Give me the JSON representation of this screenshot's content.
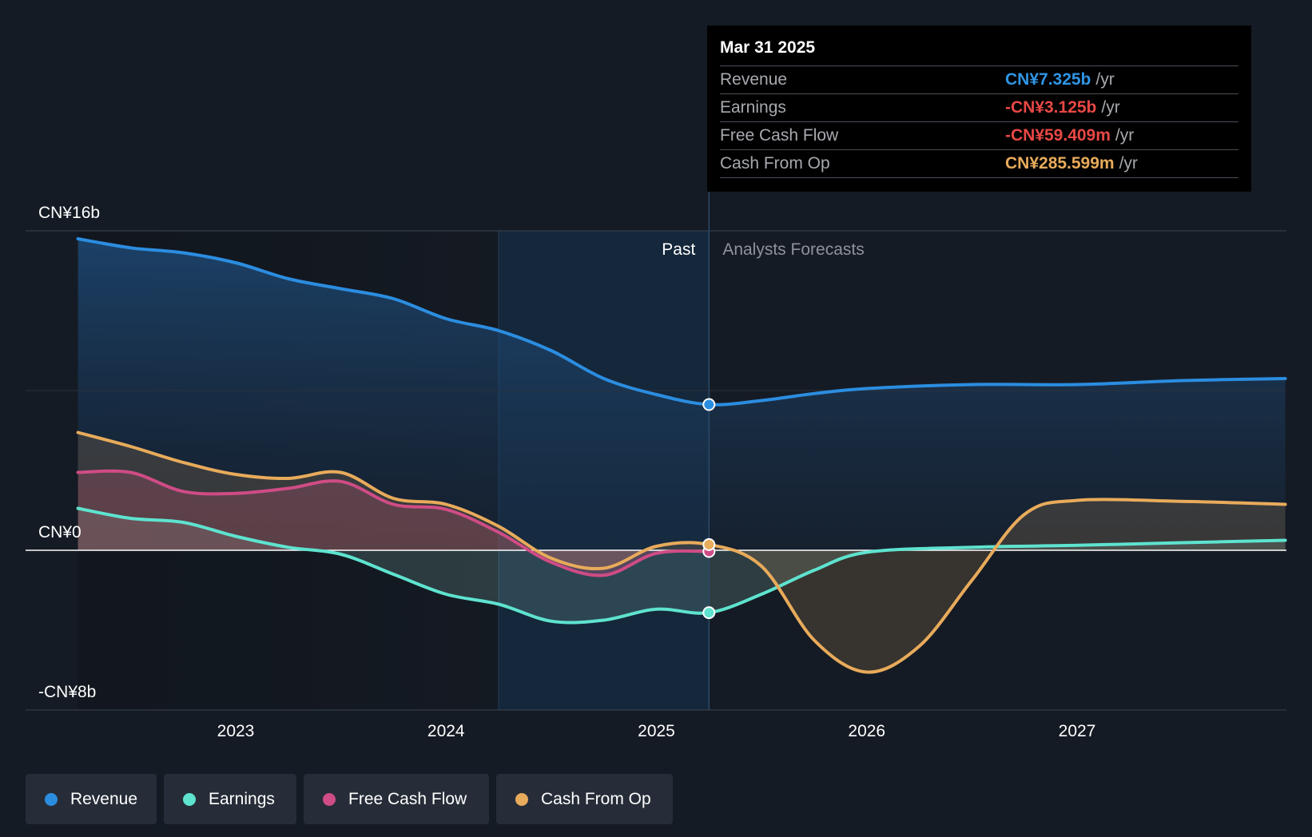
{
  "chart_data": {
    "type": "area",
    "y_labels": {
      "top": "CN¥16b",
      "zero": "CN¥0",
      "bottom": "-CN¥8b"
    },
    "ylim": [
      -8,
      16
    ],
    "xlim": [
      2022.25,
      2027.99
    ],
    "x_ticks": [
      {
        "value": 2023,
        "label": "2023"
      },
      {
        "value": 2024,
        "label": "2024"
      },
      {
        "value": 2025,
        "label": "2025"
      },
      {
        "value": 2026,
        "label": "2026"
      },
      {
        "value": 2027,
        "label": "2027"
      }
    ],
    "forecast_start": 2025.25,
    "highlight_start": 2024.25,
    "section_labels": {
      "past": "Past",
      "forecast": "Analysts Forecasts"
    },
    "series": [
      {
        "name": "Revenue",
        "color": "#2b8de0",
        "x": [
          2022.25,
          2022.5,
          2022.75,
          2023.0,
          2023.25,
          2023.5,
          2023.75,
          2024.0,
          2024.25,
          2024.5,
          2024.75,
          2025.0,
          2025.25,
          2025.5,
          2025.75,
          2026.0,
          2026.5,
          2027.0,
          2027.5,
          2027.99
        ],
        "y": [
          15.6,
          15.15,
          14.9,
          14.4,
          13.6,
          13.1,
          12.6,
          11.6,
          11.0,
          10.0,
          8.6,
          7.8,
          7.3,
          7.5,
          7.85,
          8.1,
          8.3,
          8.3,
          8.5,
          8.6
        ]
      },
      {
        "name": "Earnings",
        "color": "#5ee3cf",
        "x": [
          2022.25,
          2022.5,
          2022.75,
          2023.0,
          2023.25,
          2023.5,
          2023.75,
          2024.0,
          2024.25,
          2024.5,
          2024.75,
          2025.0,
          2025.25,
          2025.5,
          2025.75,
          2026.0,
          2026.5,
          2027.0,
          2027.5,
          2027.99
        ],
        "y": [
          2.1,
          1.6,
          1.4,
          0.7,
          0.15,
          -0.2,
          -1.2,
          -2.2,
          -2.7,
          -3.55,
          -3.5,
          -2.95,
          -3.125,
          -2.2,
          -1.0,
          -0.1,
          0.15,
          0.25,
          0.38,
          0.5
        ]
      },
      {
        "name": "Free Cash Flow",
        "color": "#cf4c85",
        "x": [
          2022.25,
          2022.5,
          2022.75,
          2023.0,
          2023.25,
          2023.5,
          2023.75,
          2024.0,
          2024.25,
          2024.5,
          2024.75,
          2025.0,
          2025.25
        ],
        "y": [
          3.9,
          3.9,
          2.95,
          2.85,
          3.1,
          3.45,
          2.3,
          2.05,
          0.9,
          -0.6,
          -1.25,
          -0.15,
          -0.059
        ]
      },
      {
        "name": "Cash From Op",
        "color": "#e8ab5b",
        "x": [
          2022.25,
          2022.5,
          2022.75,
          2023.0,
          2023.25,
          2023.5,
          2023.75,
          2024.0,
          2024.25,
          2024.5,
          2024.75,
          2025.0,
          2025.25,
          2025.5,
          2025.75,
          2026.0,
          2026.25,
          2026.5,
          2026.75,
          2027.0,
          2027.5,
          2027.99
        ],
        "y": [
          5.9,
          5.2,
          4.4,
          3.8,
          3.6,
          3.9,
          2.6,
          2.3,
          1.2,
          -0.4,
          -0.9,
          0.2,
          0.286,
          -0.8,
          -4.5,
          -6.1,
          -4.8,
          -1.5,
          1.8,
          2.5,
          2.45,
          2.3
        ]
      }
    ]
  },
  "tooltip": {
    "date": "Mar 31 2025",
    "rows": [
      {
        "label": "Revenue",
        "value": "CN¥7.325b",
        "unit": "/yr",
        "color": "#2f95e6"
      },
      {
        "label": "Earnings",
        "value": "-CN¥3.125b",
        "unit": "/yr",
        "color": "#e84845"
      },
      {
        "label": "Free Cash Flow",
        "value": "-CN¥59.409m",
        "unit": "/yr",
        "color": "#e84845"
      },
      {
        "label": "Cash From Op",
        "value": "CN¥285.599m",
        "unit": "/yr",
        "color": "#e8ab5b"
      }
    ]
  },
  "legend": [
    {
      "label": "Revenue",
      "color": "#2b8de0"
    },
    {
      "label": "Earnings",
      "color": "#5ee3cf"
    },
    {
      "label": "Free Cash Flow",
      "color": "#cf4c85"
    },
    {
      "label": "Cash From Op",
      "color": "#e8ab5b"
    }
  ]
}
